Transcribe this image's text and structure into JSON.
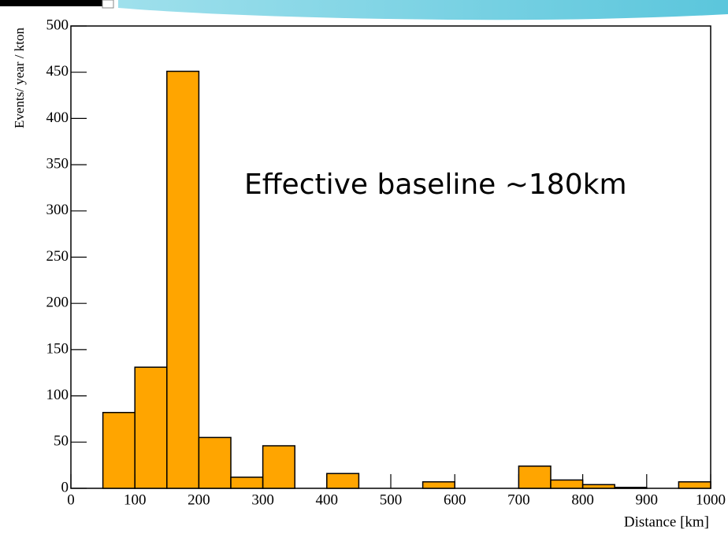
{
  "chart_data": {
    "type": "histogram",
    "annotation": "Effective baseline ~180km",
    "xlabel": "Distance [km]",
    "ylabel": "Events/ year / kton",
    "bins": [
      0,
      50,
      100,
      150,
      200,
      250,
      300,
      350,
      400,
      450,
      500,
      550,
      600,
      650,
      700,
      750,
      800,
      850,
      900,
      950,
      1000
    ],
    "values": [
      0,
      82,
      131,
      451,
      55,
      12,
      46,
      0,
      16,
      0,
      0,
      7,
      0,
      0,
      24,
      9,
      4,
      1,
      0,
      7
    ],
    "color": "#ffa500",
    "xlim": [
      0,
      1000
    ],
    "xticks": [
      0,
      100,
      200,
      300,
      400,
      500,
      600,
      700,
      800,
      900,
      1000
    ],
    "ylim": [
      0,
      500
    ],
    "yticks": [
      0,
      50,
      100,
      150,
      200,
      250,
      300,
      350,
      400,
      450,
      500
    ]
  }
}
